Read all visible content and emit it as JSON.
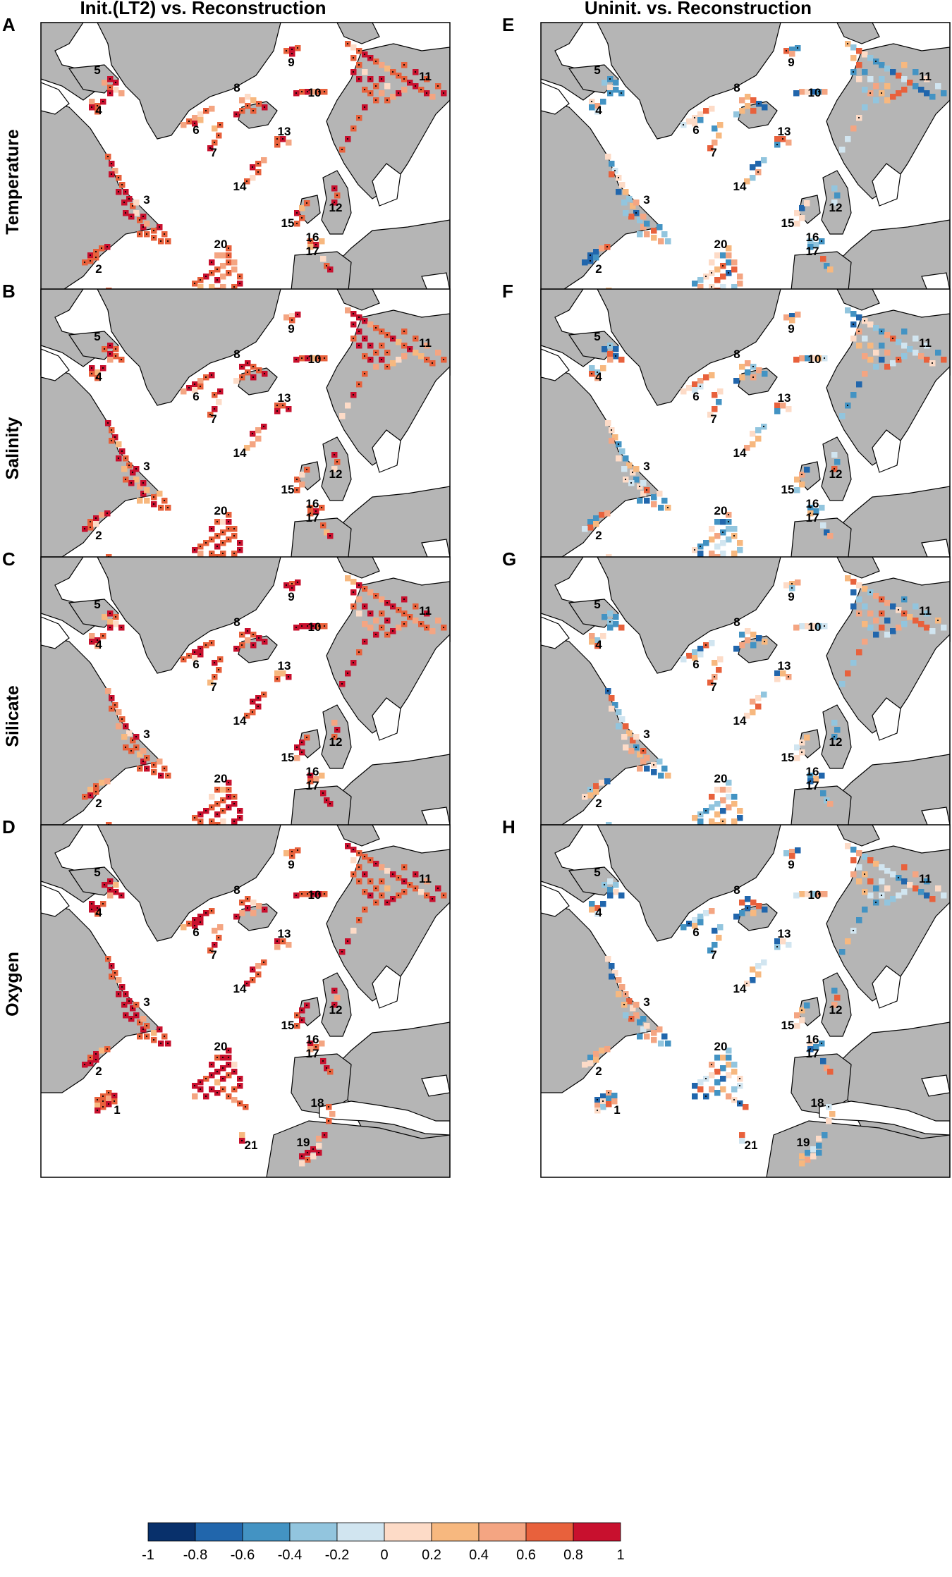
{
  "columns": [
    {
      "title": "Init.(LT2) vs. Reconstruction",
      "mode": "init"
    },
    {
      "title": "Uninit. vs. Reconstruction",
      "mode": "uninit"
    }
  ],
  "rows": [
    {
      "label": "Temperature"
    },
    {
      "label": "Salinity"
    },
    {
      "label": "Silicate"
    },
    {
      "label": "Oxygen"
    }
  ],
  "panels": [
    "A",
    "E",
    "B",
    "F",
    "C",
    "G",
    "D",
    "H"
  ],
  "regions": [
    {
      "id": "1",
      "label": "1"
    },
    {
      "id": "2",
      "label": "2"
    },
    {
      "id": "3",
      "label": "3"
    },
    {
      "id": "4",
      "label": "4"
    },
    {
      "id": "5",
      "label": "5"
    },
    {
      "id": "6",
      "label": "6"
    },
    {
      "id": "7",
      "label": "7"
    },
    {
      "id": "8",
      "label": "8"
    },
    {
      "id": "9",
      "label": "9"
    },
    {
      "id": "10",
      "label": "10"
    },
    {
      "id": "11",
      "label": "11"
    },
    {
      "id": "12",
      "label": "12"
    },
    {
      "id": "13",
      "label": "13"
    },
    {
      "id": "14",
      "label": "14"
    },
    {
      "id": "15",
      "label": "15"
    },
    {
      "id": "16",
      "label": "16"
    },
    {
      "id": "17",
      "label": "17"
    },
    {
      "id": "18",
      "label": "18"
    },
    {
      "id": "19",
      "label": "19"
    },
    {
      "id": "20",
      "label": "20"
    },
    {
      "id": "21",
      "label": "21"
    }
  ],
  "colorbar": {
    "ticks": [
      "-1",
      "-0.8",
      "-0.6",
      "-0.4",
      "-0.2",
      "0",
      "0.2",
      "0.4",
      "0.6",
      "0.8",
      "1"
    ],
    "colors": [
      "#08306b",
      "#2166ac",
      "#4393c3",
      "#92c5de",
      "#d1e5f0",
      "#fddbc7",
      "#f7b87f",
      "#f4a582",
      "#e8613c",
      "#c8102e"
    ]
  },
  "colors": {
    "land": "#b5b5b5",
    "ocean": "#ffffff",
    "coast": "#000000",
    "dot": "#000000"
  }
}
